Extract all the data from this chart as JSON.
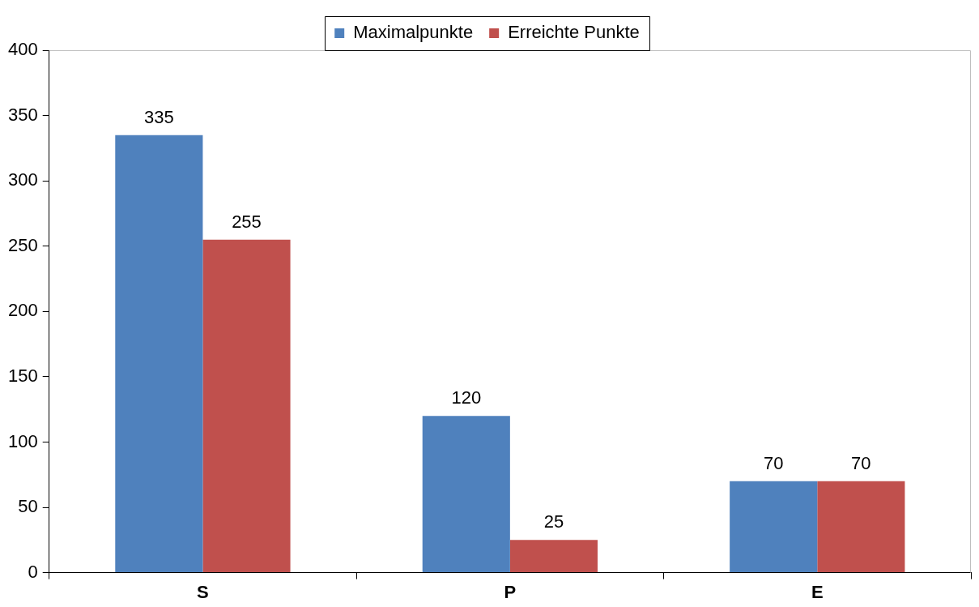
{
  "chart_data": {
    "type": "bar",
    "categories": [
      "S",
      "P",
      "E"
    ],
    "series": [
      {
        "name": "Maximalpunkte",
        "color": "#4f81bd",
        "values": [
          335,
          120,
          70
        ]
      },
      {
        "name": "Erreichte Punkte",
        "color": "#c0504d",
        "values": [
          255,
          25,
          70
        ]
      }
    ],
    "ylim": [
      0,
      400
    ],
    "yticks": [
      0,
      50,
      100,
      150,
      200,
      250,
      300,
      350,
      400
    ],
    "grid": false,
    "legend": "top",
    "data_labels": true
  }
}
